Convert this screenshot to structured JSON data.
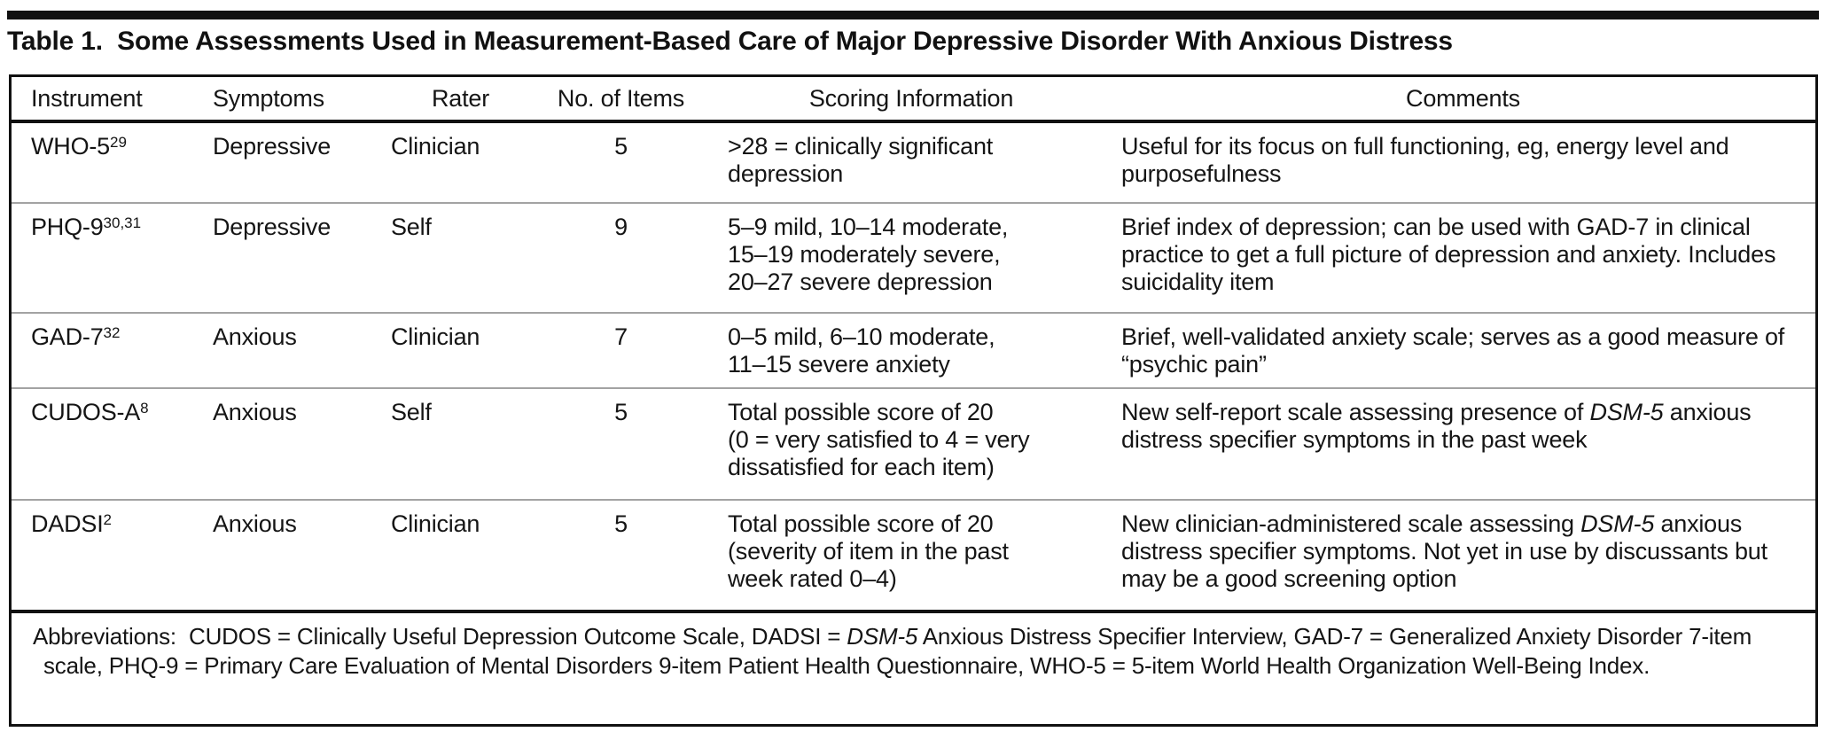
{
  "title": "Table 1.  Some Assessments Used in Measurement-Based Care of Major Depressive Disorder With Anxious Distress",
  "table": {
    "columns": [
      "Instrument",
      "Symptoms",
      "Rater",
      "No. of Items",
      "Scoring Information",
      "Comments"
    ],
    "rows": [
      {
        "instrument": "WHO-5",
        "ref": "29",
        "symptoms": "Depressive",
        "rater": "Clinician",
        "items": "5",
        "scoring": [
          ">28 = clinically significant",
          "depression"
        ],
        "comments": [
          {
            "t": "Useful for its focus on full functioning, eg, energy level and purposefulness",
            "i": false
          }
        ]
      },
      {
        "instrument": "PHQ-9",
        "ref": "30,31",
        "symptoms": "Depressive",
        "rater": "Self",
        "items": "9",
        "scoring": [
          "5–9 mild, 10–14 moderate,",
          "15–19 moderately severe,",
          "20–27 severe depression"
        ],
        "comments": [
          {
            "t": "Brief index of depression; can be used with GAD-7 in clinical practice to get a full picture of depression and anxiety. Includes suicidality item",
            "i": false
          }
        ]
      },
      {
        "instrument": "GAD-7",
        "ref": "32",
        "symptoms": "Anxious",
        "rater": "Clinician",
        "items": "7",
        "scoring": [
          "0–5 mild, 6–10 moderate,",
          "11–15 severe anxiety"
        ],
        "comments": [
          {
            "t": "Brief, well-validated anxiety scale; serves as a good measure of “psychic pain”",
            "i": false
          }
        ]
      },
      {
        "instrument": "CUDOS-A",
        "ref": "8",
        "symptoms": "Anxious",
        "rater": "Self",
        "items": "5",
        "scoring": [
          "Total possible score of 20",
          "(0 = very satisfied to 4 = very",
          "dissatisfied for each item)"
        ],
        "comments": [
          {
            "t": "New self-report scale assessing presence of ",
            "i": false
          },
          {
            "t": "DSM-5",
            "i": true
          },
          {
            "t": " anxious distress specifier symptoms in the past week",
            "i": false
          }
        ]
      },
      {
        "instrument": "DADSI",
        "ref": "2",
        "symptoms": "Anxious",
        "rater": "Clinician",
        "items": "5",
        "scoring": [
          "Total possible score of 20",
          "(severity of item in the past",
          "week rated 0–4)"
        ],
        "comments": [
          {
            "t": "New clinician-administered scale assessing ",
            "i": false
          },
          {
            "t": "DSM-5",
            "i": true
          },
          {
            "t": " anxious distress specifier symptoms. Not yet in use by discussants but may be a good screening option",
            "i": false
          }
        ]
      }
    ]
  },
  "footnote": [
    {
      "t": "Abbreviations:  CUDOS = Clinically Useful Depression Outcome Scale, DADSI = ",
      "i": false
    },
    {
      "t": "DSM-5",
      "i": true
    },
    {
      "t": " Anxious Distress Specifier Interview, GAD-7 = Generalized Anxiety Disorder 7-item scale, PHQ-9 = Primary Care Evaluation of Mental Disorders 9-item Patient Health Questionnaire, WHO-5 = 5-item World Health Organization Well-Being Index.",
      "i": false
    }
  ]
}
